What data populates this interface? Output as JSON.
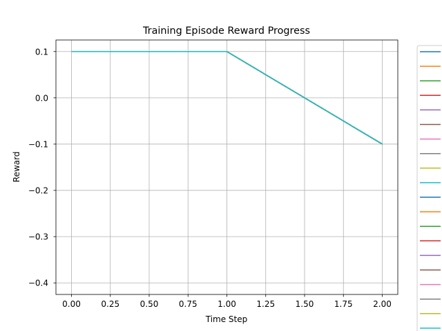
{
  "chart_data": {
    "type": "line",
    "title": "Training Episode Reward Progress",
    "xlabel": "Time Step",
    "ylabel": "Reward",
    "x": [
      0,
      1,
      2
    ],
    "xlim": [
      -0.1,
      2.1
    ],
    "ylim": [
      -0.425,
      0.125
    ],
    "xticks": [
      0,
      0.25,
      0.5,
      0.75,
      1,
      1.25,
      1.5,
      1.75,
      2
    ],
    "xtick_labels": [
      "0.00",
      "0.25",
      "0.50",
      "0.75",
      "1.00",
      "1.25",
      "1.50",
      "1.75",
      "2.00"
    ],
    "yticks": [
      0.1,
      0,
      -0.1,
      -0.2,
      -0.3,
      -0.4
    ],
    "ytick_labels": [
      "0.1",
      "0.0",
      "−0.1",
      "−0.2",
      "−0.3",
      "−0.4"
    ],
    "grid": true,
    "legend_position": "outside-right (clipped)",
    "series": [
      {
        "color": "#1f77b4",
        "values": [
          0.1,
          0.1,
          -0.1
        ]
      },
      {
        "color": "#ff7f0e",
        "values": [
          0.1,
          0.1,
          -0.1
        ]
      },
      {
        "color": "#2ca02c",
        "values": [
          0.1,
          0.1,
          -0.1
        ]
      },
      {
        "color": "#d62728",
        "values": [
          0.1,
          0.1,
          -0.1
        ]
      },
      {
        "color": "#9467bd",
        "values": [
          0.1,
          0.1,
          -0.1
        ]
      },
      {
        "color": "#8c564b",
        "values": [
          0.1,
          0.1,
          -0.1
        ]
      },
      {
        "color": "#e377c2",
        "values": [
          0.1,
          0.1,
          -0.1
        ]
      },
      {
        "color": "#7f7f7f",
        "values": [
          0.1,
          0.1,
          -0.1
        ]
      },
      {
        "color": "#bcbd22",
        "values": [
          0.1,
          0.1,
          -0.1
        ]
      },
      {
        "color": "#17becf",
        "values": [
          0.1,
          0.1,
          -0.1
        ]
      },
      {
        "color": "#1f77b4",
        "values": [
          0.1,
          0.1,
          -0.1
        ]
      },
      {
        "color": "#ff7f0e",
        "values": [
          0.1,
          0.1,
          -0.1
        ]
      },
      {
        "color": "#2ca02c",
        "values": [
          0.1,
          0.1,
          -0.1
        ]
      },
      {
        "color": "#d62728",
        "values": [
          0.1,
          0.1,
          -0.1
        ]
      },
      {
        "color": "#9467bd",
        "values": [
          0.1,
          0.1,
          -0.1
        ]
      },
      {
        "color": "#8c564b",
        "values": [
          0.1,
          0.1,
          -0.1
        ]
      },
      {
        "color": "#e377c2",
        "values": [
          0.1,
          0.1,
          -0.1
        ]
      },
      {
        "color": "#7f7f7f",
        "values": [
          0.1,
          0.1,
          -0.1
        ]
      },
      {
        "color": "#bcbd22",
        "values": [
          0.1,
          0.1,
          -0.1
        ]
      },
      {
        "color": "#17becf",
        "values": [
          0.1,
          0.1,
          -0.1
        ]
      }
    ]
  }
}
